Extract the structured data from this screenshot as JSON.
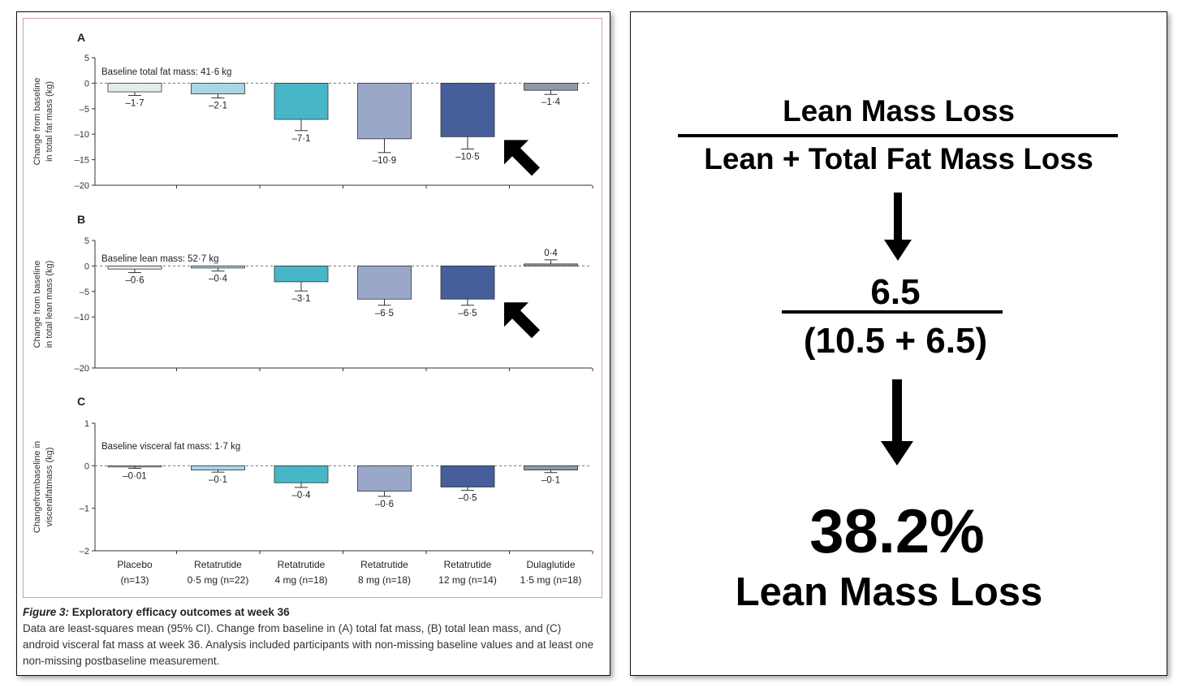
{
  "chart_data": [
    {
      "panel": "A",
      "type": "bar",
      "baseline_label": "Baseline total fat mass: 41·6 kg",
      "ylabel_lines": [
        "Change from baseline",
        "in total fat mass (kg)"
      ],
      "ylim": [
        -20,
        5
      ],
      "yticks": [
        5,
        0,
        -5,
        -10,
        -15,
        -20
      ],
      "ytick_labels": [
        "5",
        "0",
        "–5",
        "–10",
        "–15",
        "–20"
      ],
      "categories": [
        "Placebo (n=13)",
        "Retatrutide 0·5 mg (n=22)",
        "Retatrutide 4 mg (n=18)",
        "Retatrutide 8 mg (n=18)",
        "Retatrutide 12 mg (n=14)",
        "Dulaglutide 1·5 mg (n=18)"
      ],
      "values": [
        -1.7,
        -2.1,
        -7.1,
        -10.9,
        -10.5,
        -1.4
      ],
      "value_labels": [
        "–1·7",
        "–2·1",
        "–7·1",
        "–10·9",
        "–10·5",
        "–1·4"
      ],
      "ci_lower": [
        -2.4,
        -2.9,
        -9.3,
        -13.6,
        -12.9,
        -2.2
      ],
      "highlight_arrow_index": 4
    },
    {
      "panel": "B",
      "type": "bar",
      "baseline_label": "Baseline lean mass: 52·7 kg",
      "ylabel_lines": [
        "Change from baseline",
        "in total lean mass (kg)"
      ],
      "ylim": [
        -20,
        5
      ],
      "yticks": [
        5,
        0,
        -5,
        -10,
        -20
      ],
      "ytick_labels": [
        "5",
        "0",
        "–5",
        "–10",
        "–20"
      ],
      "categories": [
        "Placebo (n=13)",
        "Retatrutide 0·5 mg (n=22)",
        "Retatrutide 4 mg (n=18)",
        "Retatrutide 8 mg (n=18)",
        "Retatrutide 12 mg (n=14)",
        "Dulaglutide 1·5 mg (n=18)"
      ],
      "values": [
        -0.6,
        -0.4,
        -3.1,
        -6.5,
        -6.5,
        0.4
      ],
      "value_labels": [
        "–0·6",
        "–0·4",
        "–3·1",
        "–6·5",
        "–6·5",
        "0·4"
      ],
      "ci_lower": [
        -1.3,
        -1.0,
        -4.9,
        -7.7,
        -7.7,
        1.2
      ],
      "highlight_arrow_index": 4
    },
    {
      "panel": "C",
      "type": "bar",
      "baseline_label": "Baseline visceral fat mass: 1·7 kg",
      "ylabel_lines": [
        "Changefrombaseline in",
        "visceralfatmass (kg)"
      ],
      "ylim": [
        -2,
        1
      ],
      "yticks": [
        1,
        0,
        -1,
        -2
      ],
      "ytick_labels": [
        "1",
        "0",
        "–1",
        "–2"
      ],
      "categories": [
        "Placebo (n=13)",
        "Retatrutide 0·5 mg (n=22)",
        "Retatrutide 4 mg (n=18)",
        "Retatrutide 8 mg (n=18)",
        "Retatrutide 12 mg (n=14)",
        "Dulaglutide 1·5 mg (n=18)"
      ],
      "values": [
        -0.01,
        -0.1,
        -0.4,
        -0.6,
        -0.5,
        -0.1
      ],
      "value_labels": [
        "–0·01",
        "–0·1",
        "–0·4",
        "–0·6",
        "–0·5",
        "–0·1"
      ],
      "ci_lower": [
        -0.06,
        -0.15,
        -0.51,
        -0.72,
        -0.58,
        -0.16
      ],
      "highlight_arrow_index": null
    }
  ],
  "x_axis_labels": [
    [
      "Placebo",
      "(n=13)"
    ],
    [
      "Retatrutide",
      "0·5 mg (n=22)"
    ],
    [
      "Retatrutide",
      "4 mg (n=18)"
    ],
    [
      "Retatrutide",
      "8 mg (n=18)"
    ],
    [
      "Retatrutide",
      "12 mg (n=14)"
    ],
    [
      "Dulaglutide",
      "1·5 mg (n=18)"
    ]
  ],
  "bar_colors": [
    "#e4ece9",
    "#a9d6e6",
    "#47b7c8",
    "#99a7c9",
    "#465f9a",
    "#8d98a8"
  ],
  "caption": {
    "figure_label": "Figure 3:",
    "title": "Exploratory efficacy outcomes at week 36",
    "body": "Data are least-squares mean (95% CI). Change from baseline in (A) total fat mass, (B) total lean mass, and (C) android visceral fat mass at week 36. Analysis included participants with non-missing baseline values and at least one non-missing postbaseline measurement."
  },
  "calculation": {
    "numerator_label": "Lean Mass Loss",
    "denominator_label": "Lean + Total Fat Mass Loss",
    "numerator_value": "6.5",
    "denominator_value": "(10.5 + 6.5)",
    "result": "38.2%",
    "result_label": "Lean Mass Loss"
  }
}
